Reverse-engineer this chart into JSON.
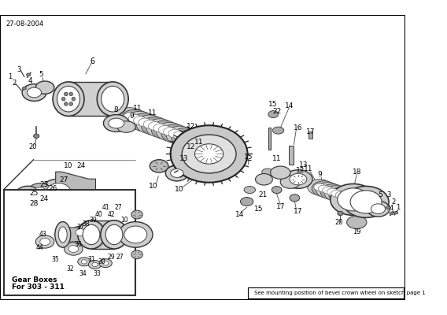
{
  "date_label": "27-08-2004",
  "footer_note": "See mounting position of bevel crown wheel on sketch page 1",
  "inset_label_1": "For 303 - 311",
  "inset_label_2": "Gear Boxes",
  "bg_color": "#ffffff",
  "border_color": "#000000",
  "line_color": "#555555",
  "part_color": "#888888",
  "dark_part_color": "#333333",
  "light_part_color": "#aaaaaa"
}
